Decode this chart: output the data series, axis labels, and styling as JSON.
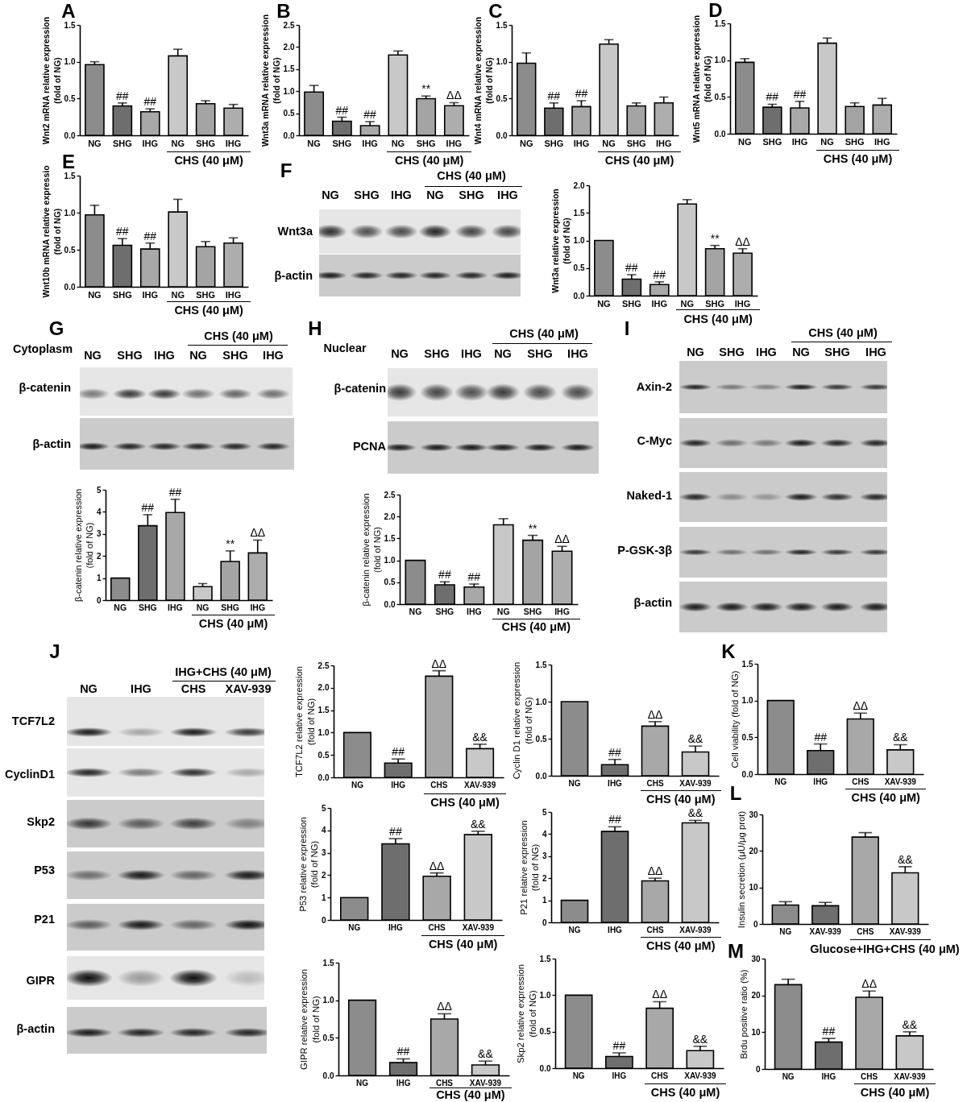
{
  "chart_data": [
    {
      "type": "bar",
      "title": "A",
      "ylabel": "Wnt2 mRNA relative expression\n(fold of NG)",
      "categories": [
        "NG",
        "SHG",
        "IHG",
        "NG",
        "SHG",
        "IHG"
      ],
      "values": [
        0.96,
        0.4,
        0.32,
        1.08,
        0.43,
        0.37
      ],
      "errors": [
        0.04,
        0.04,
        0.04,
        0.09,
        0.04,
        0.05
      ],
      "colors": [
        "#8c8c8c",
        "#6e6e6e",
        "#a8a8a8",
        "#c8c8c8",
        "#a4a4a4",
        "#adadad"
      ],
      "value_labels": [
        null,
        "##",
        "##",
        null,
        null,
        null
      ],
      "ylim": [
        0,
        1.5
      ],
      "yticks": [
        {
          "value": 0,
          "label": "0.0"
        },
        0.5,
        {
          "value": 1,
          "label": "1.0"
        },
        1.5
      ],
      "annotations": [
        "CHS (40 μM)"
      ]
    },
    {
      "type": "bar",
      "title": "B",
      "ylabel": "Wnt3a mRNA relative expression\n(fold of NG)",
      "categories": [
        "NG",
        "SHG",
        "IHG",
        "NG",
        "SHG",
        "IHG"
      ],
      "values": [
        0.98,
        0.32,
        0.22,
        1.82,
        0.83,
        0.67
      ],
      "errors": [
        0.15,
        0.09,
        0.09,
        0.09,
        0.06,
        0.07
      ],
      "colors": [
        "#8c8c8c",
        "#6e6e6e",
        "#a8a8a8",
        "#c8c8c8",
        "#a4a4a4",
        "#adadad"
      ],
      "value_labels": [
        null,
        "##",
        "##",
        null,
        "**",
        "ΔΔ"
      ],
      "ylim": [
        0,
        2.5
      ],
      "yticks": [
        {
          "value": 0,
          "label": "0.0"
        },
        0.5,
        {
          "value": 1,
          "label": "1.0"
        },
        1.5,
        {
          "value": 2,
          "label": "2.0"
        },
        2.5
      ],
      "annotations": [
        "CHS (40 μM)"
      ]
    },
    {
      "type": "bar",
      "title": "C",
      "ylabel": "Wnt4 mRNA relative expression\n(fold of NG)",
      "categories": [
        "NG",
        "SHG",
        "IHG",
        "NG",
        "SHG",
        "IHG"
      ],
      "values": [
        0.98,
        0.37,
        0.39,
        1.24,
        0.4,
        0.44
      ],
      "errors": [
        0.14,
        0.07,
        0.08,
        0.06,
        0.04,
        0.08
      ],
      "colors": [
        "#8c8c8c",
        "#6e6e6e",
        "#a8a8a8",
        "#c8c8c8",
        "#a4a4a4",
        "#adadad"
      ],
      "value_labels": [
        null,
        "##",
        "##",
        null,
        null,
        null
      ],
      "ylim": [
        0,
        1.5
      ],
      "yticks": [
        {
          "value": 0,
          "label": "0.0"
        },
        0.5,
        {
          "value": 1,
          "label": "1.0"
        },
        1.5
      ],
      "annotations": [
        "CHS (40 μM)"
      ]
    },
    {
      "type": "bar",
      "title": "D",
      "ylabel": "Wnt5 mRNA relative expression\n(fold of NG)",
      "categories": [
        "NG",
        "SHG",
        "IHG",
        "NG",
        "SHG",
        "IHG"
      ],
      "values": [
        0.97,
        0.36,
        0.35,
        1.23,
        0.37,
        0.39
      ],
      "errors": [
        0.05,
        0.04,
        0.09,
        0.07,
        0.05,
        0.09
      ],
      "colors": [
        "#8c8c8c",
        "#6e6e6e",
        "#a8a8a8",
        "#c8c8c8",
        "#a4a4a4",
        "#adadad"
      ],
      "value_labels": [
        null,
        "##",
        "##",
        null,
        null,
        null
      ],
      "ylim": [
        0,
        1.5
      ],
      "yticks": [
        {
          "value": 0,
          "label": "0.0"
        },
        0.5,
        {
          "value": 1,
          "label": "1.0"
        },
        1.5
      ],
      "annotations": [
        "CHS (40 μM)"
      ]
    },
    {
      "type": "bar",
      "title": "E",
      "ylabel": "Wnt10b mRNA relative expressio\n(fold of NG)",
      "categories": [
        "NG",
        "SHG",
        "IHG",
        "NG",
        "SHG",
        "IHG"
      ],
      "values": [
        0.97,
        0.56,
        0.51,
        1.01,
        0.54,
        0.59
      ],
      "errors": [
        0.13,
        0.09,
        0.08,
        0.17,
        0.07,
        0.07
      ],
      "colors": [
        "#8c8c8c",
        "#6e6e6e",
        "#a8a8a8",
        "#c8c8c8",
        "#a4a4a4",
        "#adadad"
      ],
      "value_labels": [
        null,
        "##",
        "##",
        null,
        null,
        null
      ],
      "ylim": [
        0,
        1.5
      ],
      "yticks": [
        {
          "value": 0,
          "label": "0.0"
        },
        0.5,
        {
          "value": 1,
          "label": "1.0"
        },
        1.5
      ],
      "annotations": [
        "CHS (40 μM)"
      ]
    },
    {
      "type": "other",
      "title": "F",
      "categories": [
        "NG",
        "SHG",
        "IHG",
        "NG",
        "SHG",
        "IHG"
      ],
      "y_categories": [
        "Wnt3a",
        "β-actin"
      ],
      "annotations": [
        "CHS (40 μM)"
      ]
    },
    {
      "type": "bar",
      "ylabel": "Wnt3a relative expression\n(fold of NG)",
      "categories": [
        "NG",
        "SHG",
        "IHG",
        "NG",
        "SHG",
        "IHG"
      ],
      "values": [
        1.0,
        0.3,
        0.2,
        1.66,
        0.85,
        0.77
      ],
      "errors": [
        null,
        0.08,
        0.05,
        0.08,
        0.06,
        0.08
      ],
      "colors": [
        "#8c8c8c",
        "#6e6e6e",
        "#a8a8a8",
        "#c8c8c8",
        "#a4a4a4",
        "#adadad"
      ],
      "value_labels": [
        null,
        "##",
        "##",
        null,
        "**",
        "ΔΔ"
      ],
      "ylim": [
        0,
        2
      ],
      "yticks": [
        {
          "value": 0,
          "label": "0.0"
        },
        0.5,
        {
          "value": 1,
          "label": "1.0"
        },
        1.5,
        {
          "value": 2,
          "label": "2.0"
        }
      ],
      "annotations": [
        "CHS (40 μM)"
      ]
    },
    {
      "type": "other",
      "title": "G",
      "categories": [
        "NG",
        "SHG",
        "IHG",
        "NG",
        "SHG",
        "IHG"
      ],
      "y_categories": [
        "β-catenin",
        "β-actin"
      ],
      "annotations": [
        "Cytoplasm",
        "CHS (40 μM)"
      ]
    },
    {
      "type": "other",
      "title": "H",
      "categories": [
        "NG",
        "SHG",
        "IHG",
        "NG",
        "SHG",
        "IHG"
      ],
      "y_categories": [
        "β-catenin",
        "PCNA"
      ],
      "annotations": [
        "Nuclear",
        "CHS (40 μM)"
      ]
    },
    {
      "type": "other",
      "title": "I",
      "categories": [
        "NG",
        "SHG",
        "IHG",
        "NG",
        "SHG",
        "IHG"
      ],
      "y_categories": [
        "Axin-2",
        "C-Myc",
        "Naked-1",
        "P-GSK-3β",
        "β-actin"
      ],
      "annotations": [
        "CHS (40 μM)"
      ]
    },
    {
      "type": "bar",
      "ylabel": "β-catenin relative expression\n(fold of NG)",
      "categories": [
        "NG",
        "SHG",
        "IHG",
        "NG",
        "SHG",
        "IHG"
      ],
      "values": [
        1.0,
        3.37,
        3.97,
        0.61,
        1.75,
        2.14
      ],
      "errors": [
        null,
        0.5,
        0.6,
        0.14,
        0.48,
        0.58
      ],
      "colors": [
        "#8c8c8c",
        "#6e6e6e",
        "#a8a8a8",
        "#c8c8c8",
        "#a4a4a4",
        "#adadad"
      ],
      "value_labels": [
        null,
        "##",
        "##",
        null,
        "**",
        "ΔΔ"
      ],
      "ylim": [
        0,
        5
      ],
      "yticks": [
        0,
        1,
        2,
        3,
        4,
        5
      ],
      "annotations": [
        "CHS (40 μM)"
      ]
    },
    {
      "type": "bar",
      "ylabel": "β-catenin relative expression\n(fold of NG)",
      "categories": [
        "NG",
        "SHG",
        "IHG",
        "NG",
        "SHG",
        "IHG"
      ],
      "values": [
        1.0,
        0.44,
        0.39,
        1.81,
        1.46,
        1.21
      ],
      "errors": [
        null,
        0.07,
        0.07,
        0.14,
        0.11,
        0.11
      ],
      "colors": [
        "#8c8c8c",
        "#6e6e6e",
        "#a8a8a8",
        "#c8c8c8",
        "#a4a4a4",
        "#adadad"
      ],
      "value_labels": [
        null,
        "##",
        "##",
        null,
        "**",
        "ΔΔ"
      ],
      "ylim": [
        0,
        2.5
      ],
      "yticks": [
        {
          "value": 0,
          "label": "0.0"
        },
        0.5,
        {
          "value": 1,
          "label": "1.0"
        },
        1.5,
        {
          "value": 2,
          "label": "2.0"
        },
        2.5
      ],
      "annotations": [
        "CHS (40 μM)"
      ]
    },
    {
      "type": "other",
      "title": "J",
      "categories": [
        "NG",
        "IHG",
        "CHS",
        "XAV-939"
      ],
      "y_categories": [
        "TCF7L2",
        "CyclinD1",
        "Skp2",
        "P53",
        "P21",
        "GIPR",
        "β-actin"
      ],
      "annotations": [
        "IHG+CHS (40 μM)"
      ]
    },
    {
      "type": "bar",
      "ylabel": "TCF7L2 relative expression\n(fold of NG)",
      "categories": [
        "NG",
        "IHG",
        "CHS",
        "XAV-939"
      ],
      "values": [
        1.0,
        0.32,
        2.26,
        0.64
      ],
      "errors": [
        null,
        0.09,
        0.12,
        0.1
      ],
      "colors": [
        "#8c8c8c",
        "#6e6e6e",
        "#a8a8a8",
        "#c8c8c8"
      ],
      "value_labels": [
        null,
        "##",
        "ΔΔ",
        "&&"
      ],
      "ylim": [
        0,
        2.5
      ],
      "yticks": [
        {
          "value": 0,
          "label": "0.0"
        },
        0.5,
        {
          "value": 1,
          "label": "1.0"
        },
        1.5,
        {
          "value": 2,
          "label": "2.0"
        },
        2.5
      ],
      "annotations": [
        "CHS (40 μM)"
      ]
    },
    {
      "type": "bar",
      "ylabel": "Cyclin D1 relative expression\n(fold of NG)",
      "categories": [
        "NG",
        "IHG",
        "CHS",
        "XAV-939"
      ],
      "values": [
        1.0,
        0.15,
        0.67,
        0.32
      ],
      "errors": [
        null,
        0.07,
        0.06,
        0.08
      ],
      "colors": [
        "#8c8c8c",
        "#6e6e6e",
        "#a8a8a8",
        "#c8c8c8"
      ],
      "value_labels": [
        null,
        "##",
        "ΔΔ",
        "&&"
      ],
      "ylim": [
        0,
        1.5
      ],
      "yticks": [
        {
          "value": 0,
          "label": "0.0"
        },
        0.5,
        {
          "value": 1,
          "label": "1.0"
        },
        1.5
      ],
      "annotations": [
        "CHS (40 μM)"
      ]
    },
    {
      "type": "bar",
      "title": "K",
      "ylabel": "Cell viability (fold of NG)",
      "categories": [
        "NG",
        "IHG",
        "CHS",
        "XAV-939"
      ],
      "values": [
        1.0,
        0.32,
        0.75,
        0.33
      ],
      "errors": [
        null,
        0.09,
        0.08,
        0.07
      ],
      "colors": [
        "#8c8c8c",
        "#6e6e6e",
        "#a8a8a8",
        "#c8c8c8"
      ],
      "value_labels": [
        null,
        "##",
        "ΔΔ",
        "&&"
      ],
      "ylim": [
        0,
        1.5
      ],
      "yticks": [
        {
          "value": 0,
          "label": "0.0"
        },
        0.5,
        {
          "value": 1,
          "label": "1.0"
        },
        1.5
      ],
      "annotations": [
        "CHS (40 μM)"
      ]
    },
    {
      "type": "bar",
      "ylabel": "P53 relative expression\n(fold of NG)",
      "categories": [
        "NG",
        "IHG",
        "CHS",
        "XAV-939"
      ],
      "values": [
        1.0,
        3.4,
        1.95,
        3.81
      ],
      "errors": [
        null,
        0.23,
        0.15,
        0.15
      ],
      "colors": [
        "#8c8c8c",
        "#6e6e6e",
        "#a8a8a8",
        "#c8c8c8"
      ],
      "value_labels": [
        null,
        "##",
        "ΔΔ",
        "&&"
      ],
      "ylim": [
        0,
        5
      ],
      "yticks": [
        0,
        1,
        2,
        3,
        4,
        5
      ],
      "annotations": [
        "CHS (40 μM)"
      ]
    },
    {
      "type": "bar",
      "ylabel": "P21 relative expression\n(fold of NG)",
      "categories": [
        "NG",
        "IHG",
        "CHS",
        "XAV-939"
      ],
      "values": [
        1.0,
        4.12,
        1.88,
        4.51
      ],
      "errors": [
        null,
        0.21,
        0.12,
        0.11
      ],
      "colors": [
        "#8c8c8c",
        "#6e6e6e",
        "#a8a8a8",
        "#c8c8c8"
      ],
      "value_labels": [
        null,
        "##",
        "ΔΔ",
        "&&"
      ],
      "ylim": [
        0,
        5
      ],
      "yticks": [
        0,
        1,
        2,
        3,
        4,
        5
      ],
      "annotations": [
        "CHS (40 μM)"
      ]
    },
    {
      "type": "bar",
      "title": "L",
      "ylabel": "Insulin secretion (μU/μg prot)",
      "categories": [
        "NG",
        "XAV-939",
        "CHS",
        "XAV-939"
      ],
      "values": [
        5.2,
        5.0,
        23.8,
        14.0
      ],
      "errors": [
        0.9,
        0.9,
        1.2,
        1.7
      ],
      "colors": [
        "#8c8c8c",
        "#6e6e6e",
        "#a8a8a8",
        "#c8c8c8"
      ],
      "value_labels": [
        null,
        null,
        null,
        "&&"
      ],
      "ylim": [
        0,
        30
      ],
      "yticks": [
        0,
        10,
        20,
        30
      ],
      "annotations": [
        "Glucose+IHG+CHS (40 μM)"
      ]
    },
    {
      "type": "bar",
      "ylabel": "GIPR relative expression\n(fold of NG)",
      "categories": [
        "NG",
        "IHG",
        "CHS",
        "XAV-939"
      ],
      "values": [
        1.0,
        0.17,
        0.75,
        0.14
      ],
      "errors": [
        null,
        0.05,
        0.07,
        0.05
      ],
      "colors": [
        "#8c8c8c",
        "#6e6e6e",
        "#a8a8a8",
        "#c8c8c8"
      ],
      "value_labels": [
        null,
        "##",
        "ΔΔ",
        "&&"
      ],
      "ylim": [
        0,
        1.5
      ],
      "yticks": [
        {
          "value": 0,
          "label": "0.0"
        },
        0.5,
        {
          "value": 1,
          "label": "1.0"
        },
        1.5
      ],
      "annotations": [
        "CHS (40 μM)"
      ]
    },
    {
      "type": "bar",
      "ylabel": "Skp2 relative expression\n(fold of NG)",
      "categories": [
        "NG",
        "IHG",
        "CHS",
        "XAV-939"
      ],
      "values": [
        1.0,
        0.16,
        0.82,
        0.24
      ],
      "errors": [
        null,
        0.05,
        0.09,
        0.06
      ],
      "colors": [
        "#8c8c8c",
        "#6e6e6e",
        "#a8a8a8",
        "#c8c8c8"
      ],
      "value_labels": [
        null,
        "##",
        "ΔΔ",
        "&&"
      ],
      "ylim": [
        0,
        1.5
      ],
      "yticks": [
        {
          "value": 0,
          "label": "0.0"
        },
        0.5,
        {
          "value": 1,
          "label": "1.0"
        },
        1.5
      ],
      "annotations": [
        "CHS (40 μM)"
      ]
    },
    {
      "type": "bar",
      "title": "M",
      "ylabel": "Brdu positive ratio (%)",
      "categories": [
        "NG",
        "IHG",
        "CHS",
        "XAV-939"
      ],
      "values": [
        22.9,
        7.3,
        19.5,
        9.0
      ],
      "errors": [
        1.5,
        1.0,
        1.7,
        1.1
      ],
      "colors": [
        "#8c8c8c",
        "#6e6e6e",
        "#a8a8a8",
        "#c8c8c8"
      ],
      "value_labels": [
        null,
        "##",
        "ΔΔ",
        "&&"
      ],
      "ylim": [
        0,
        30
      ],
      "yticks": [
        0,
        10,
        20,
        30
      ],
      "annotations": [
        "CHS (40 μM)"
      ]
    }
  ]
}
